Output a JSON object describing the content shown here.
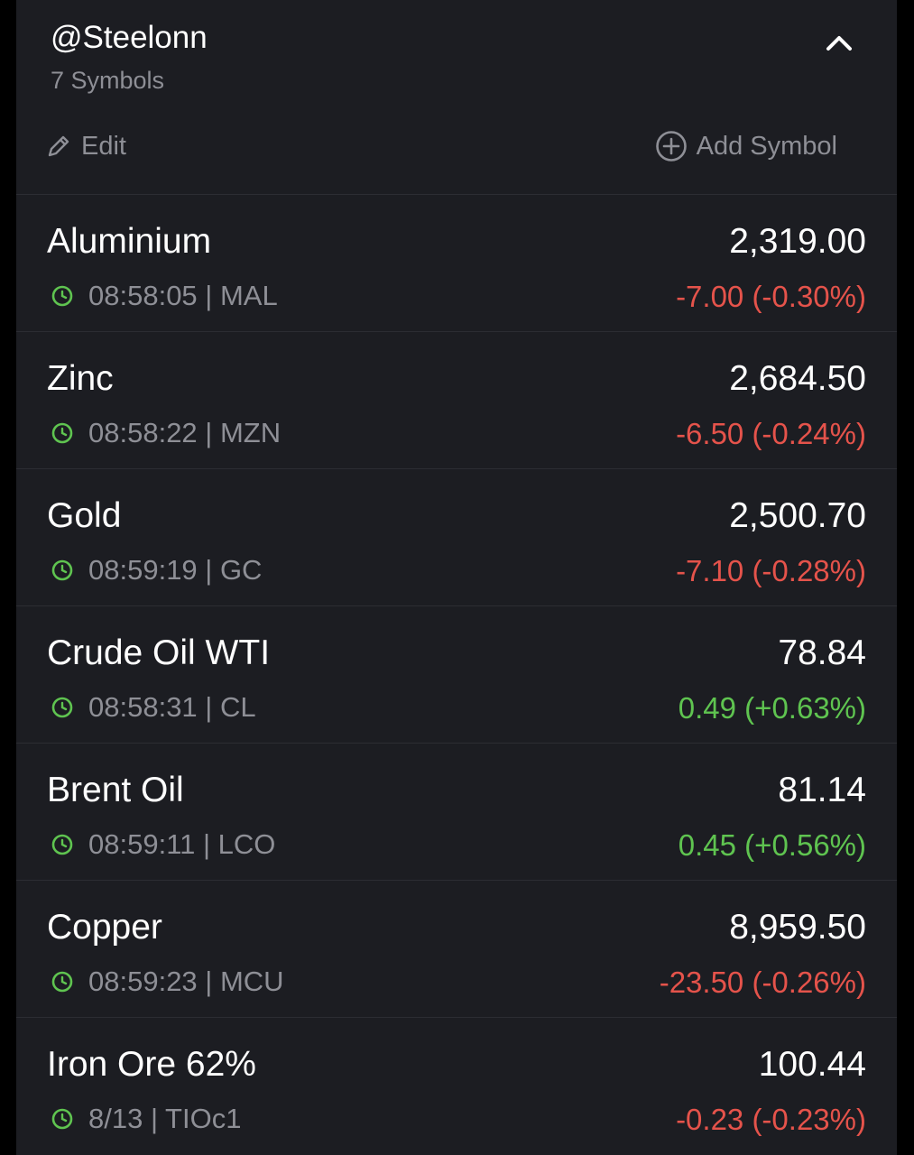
{
  "watchlist": {
    "title": "@Steelonn",
    "subtitle": "7 Symbols",
    "edit_label": "Edit",
    "add_label": "Add Symbol"
  },
  "colors": {
    "background": "#1c1d22",
    "negative": "#e5534b",
    "positive": "#5fc450",
    "muted": "#8e8f96",
    "clock": "#5fc450"
  },
  "icons": {
    "collapse": "chevron-up-icon",
    "edit": "pencil-icon",
    "add": "plus-circle-icon",
    "time": "clock-icon"
  },
  "symbols": [
    {
      "name": "Aluminium",
      "meta": "08:58:05 | MAL",
      "price": "2,319.00",
      "change": "-7.00 (-0.30%)",
      "direction": "down"
    },
    {
      "name": "Zinc",
      "meta": "08:58:22 | MZN",
      "price": "2,684.50",
      "change": "-6.50 (-0.24%)",
      "direction": "down"
    },
    {
      "name": "Gold",
      "meta": "08:59:19 | GC",
      "price": "2,500.70",
      "change": "-7.10 (-0.28%)",
      "direction": "down"
    },
    {
      "name": "Crude Oil WTI",
      "meta": "08:58:31 | CL",
      "price": "78.84",
      "change": "0.49 (+0.63%)",
      "direction": "up"
    },
    {
      "name": "Brent Oil",
      "meta": "08:59:11 | LCO",
      "price": "81.14",
      "change": "0.45 (+0.56%)",
      "direction": "up"
    },
    {
      "name": "Copper",
      "meta": "08:59:23 | MCU",
      "price": "8,959.50",
      "change": "-23.50 (-0.26%)",
      "direction": "down"
    },
    {
      "name": "Iron Ore 62%",
      "meta": "8/13 | TIOc1",
      "price": "100.44",
      "change": "-0.23 (-0.23%)",
      "direction": "down"
    }
  ]
}
